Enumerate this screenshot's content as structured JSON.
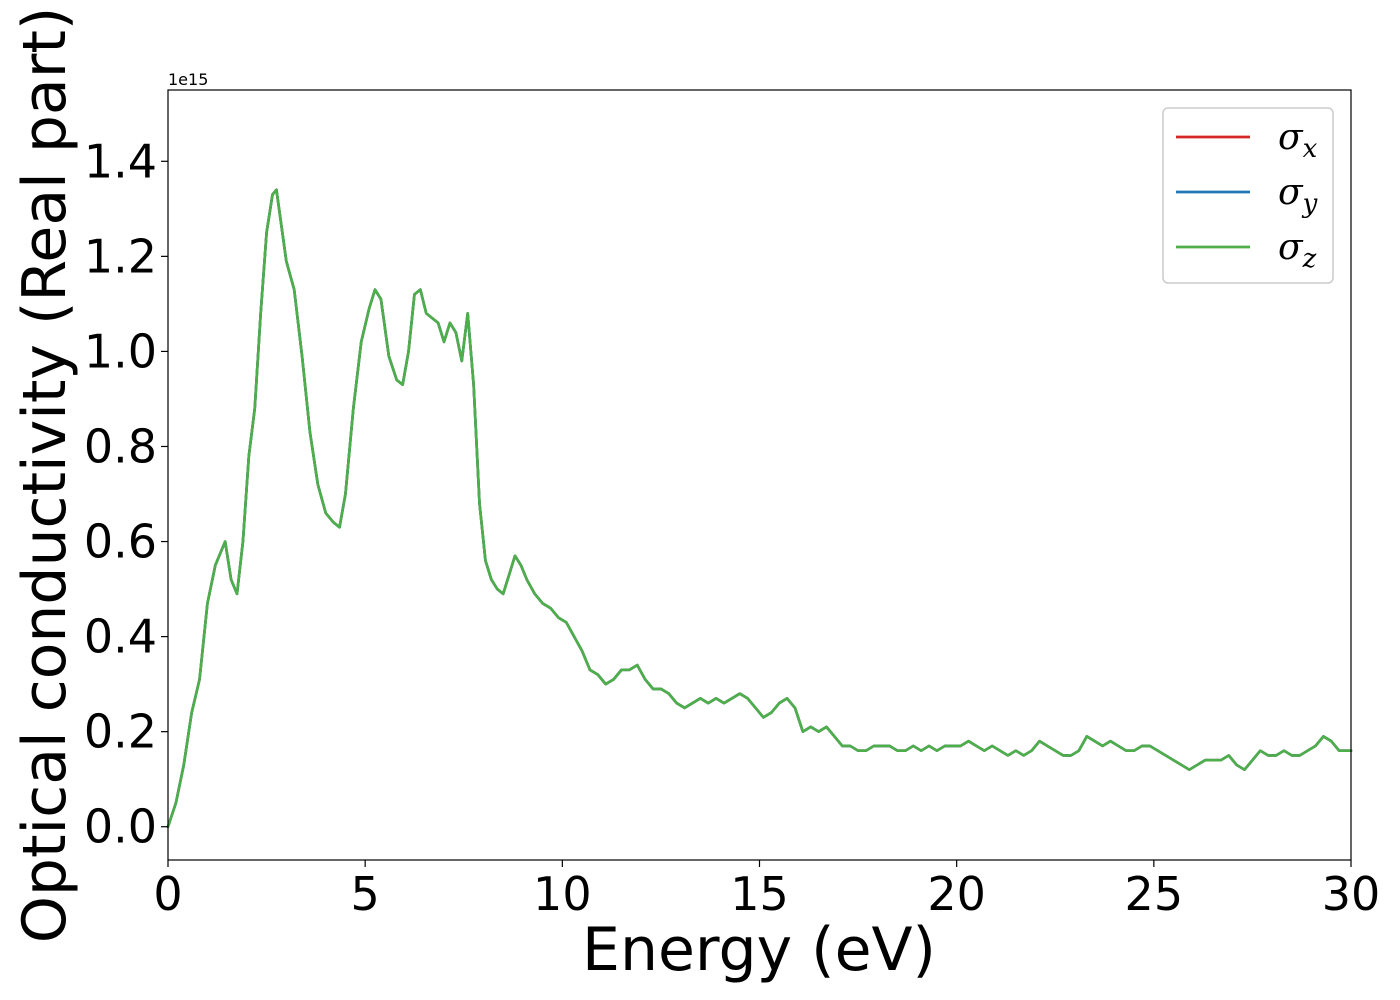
{
  "chart_data": {
    "type": "line",
    "xlabel": "Energy (eV)",
    "ylabel": "Optical conductivity (Real part)",
    "y_offset_label": "1e15",
    "xlim": [
      0,
      30
    ],
    "ylim": [
      -0.07,
      1.55
    ],
    "x_ticks": [
      0,
      5,
      10,
      15,
      20,
      25,
      30
    ],
    "y_ticks": [
      0.0,
      0.2,
      0.4,
      0.6,
      0.8,
      1.0,
      1.2,
      1.4
    ],
    "x_tick_labels": [
      "0",
      "5",
      "10",
      "15",
      "20",
      "25",
      "30"
    ],
    "y_tick_labels": [
      "0.0",
      "0.2",
      "0.4",
      "0.6",
      "0.8",
      "1.0",
      "1.2",
      "1.4"
    ],
    "grid": false,
    "legend_position": "top-right",
    "x": [
      0,
      0.2,
      0.4,
      0.6,
      0.8,
      1.0,
      1.2,
      1.45,
      1.6,
      1.75,
      1.9,
      2.05,
      2.2,
      2.35,
      2.5,
      2.65,
      2.75,
      2.85,
      3.0,
      3.2,
      3.4,
      3.6,
      3.8,
      4.0,
      4.2,
      4.35,
      4.5,
      4.7,
      4.9,
      5.1,
      5.25,
      5.4,
      5.6,
      5.8,
      5.95,
      6.1,
      6.25,
      6.4,
      6.55,
      6.7,
      6.85,
      7.0,
      7.15,
      7.3,
      7.45,
      7.6,
      7.75,
      7.9,
      8.05,
      8.2,
      8.35,
      8.5,
      8.65,
      8.8,
      8.95,
      9.1,
      9.3,
      9.5,
      9.7,
      9.9,
      10.1,
      10.3,
      10.5,
      10.7,
      10.9,
      11.1,
      11.3,
      11.5,
      11.7,
      11.9,
      12.1,
      12.3,
      12.5,
      12.7,
      12.9,
      13.1,
      13.3,
      13.5,
      13.7,
      13.9,
      14.1,
      14.3,
      14.5,
      14.7,
      14.9,
      15.1,
      15.3,
      15.5,
      15.7,
      15.9,
      16.1,
      16.3,
      16.5,
      16.7,
      16.9,
      17.1,
      17.3,
      17.5,
      17.7,
      17.9,
      18.1,
      18.3,
      18.5,
      18.7,
      18.9,
      19.1,
      19.3,
      19.5,
      19.7,
      19.9,
      20.1,
      20.3,
      20.5,
      20.7,
      20.9,
      21.1,
      21.3,
      21.5,
      21.7,
      21.9,
      22.1,
      22.3,
      22.5,
      22.7,
      22.9,
      23.1,
      23.3,
      23.5,
      23.7,
      23.9,
      24.1,
      24.3,
      24.5,
      24.7,
      24.9,
      25.1,
      25.3,
      25.5,
      25.7,
      25.9,
      26.1,
      26.3,
      26.5,
      26.7,
      26.9,
      27.1,
      27.3,
      27.5,
      27.7,
      27.9,
      28.1,
      28.3,
      28.5,
      28.7,
      28.9,
      29.1,
      29.3,
      29.5,
      29.7,
      30.0
    ],
    "series": [
      {
        "name": "σx",
        "color": "#d62728",
        "values": [
          0.0,
          0.05,
          0.13,
          0.24,
          0.31,
          0.47,
          0.55,
          0.6,
          0.52,
          0.49,
          0.6,
          0.78,
          0.88,
          1.08,
          1.25,
          1.33,
          1.34,
          1.28,
          1.19,
          1.13,
          0.99,
          0.83,
          0.72,
          0.66,
          0.64,
          0.63,
          0.7,
          0.88,
          1.02,
          1.09,
          1.13,
          1.11,
          0.99,
          0.94,
          0.93,
          1.0,
          1.12,
          1.13,
          1.08,
          1.07,
          1.06,
          1.02,
          1.06,
          1.04,
          0.98,
          1.08,
          0.93,
          0.68,
          0.56,
          0.52,
          0.5,
          0.49,
          0.53,
          0.57,
          0.55,
          0.52,
          0.49,
          0.47,
          0.46,
          0.44,
          0.43,
          0.4,
          0.37,
          0.33,
          0.32,
          0.3,
          0.31,
          0.33,
          0.33,
          0.34,
          0.31,
          0.29,
          0.29,
          0.28,
          0.26,
          0.25,
          0.26,
          0.27,
          0.26,
          0.27,
          0.26,
          0.27,
          0.28,
          0.27,
          0.25,
          0.23,
          0.24,
          0.26,
          0.27,
          0.25,
          0.2,
          0.21,
          0.2,
          0.21,
          0.19,
          0.17,
          0.17,
          0.16,
          0.16,
          0.17,
          0.17,
          0.17,
          0.16,
          0.16,
          0.17,
          0.16,
          0.17,
          0.16,
          0.17,
          0.17,
          0.17,
          0.18,
          0.17,
          0.16,
          0.17,
          0.16,
          0.15,
          0.16,
          0.15,
          0.16,
          0.18,
          0.17,
          0.16,
          0.15,
          0.15,
          0.16,
          0.19,
          0.18,
          0.17,
          0.18,
          0.17,
          0.16,
          0.16,
          0.17,
          0.17,
          0.16,
          0.15,
          0.14,
          0.13,
          0.12,
          0.13,
          0.14,
          0.14,
          0.14,
          0.15,
          0.13,
          0.12,
          0.14,
          0.16,
          0.15,
          0.15,
          0.16,
          0.15,
          0.15,
          0.16,
          0.17,
          0.19,
          0.18,
          0.16,
          0.16
        ]
      },
      {
        "name": "σy",
        "color": "#1f77b4",
        "values": [
          0.0,
          0.05,
          0.13,
          0.24,
          0.31,
          0.47,
          0.55,
          0.6,
          0.52,
          0.49,
          0.6,
          0.78,
          0.88,
          1.08,
          1.25,
          1.33,
          1.34,
          1.28,
          1.19,
          1.13,
          0.99,
          0.83,
          0.72,
          0.66,
          0.64,
          0.63,
          0.7,
          0.88,
          1.02,
          1.09,
          1.13,
          1.11,
          0.99,
          0.94,
          0.93,
          1.0,
          1.12,
          1.13,
          1.08,
          1.07,
          1.06,
          1.02,
          1.06,
          1.04,
          0.98,
          1.08,
          0.93,
          0.68,
          0.56,
          0.52,
          0.5,
          0.49,
          0.53,
          0.57,
          0.55,
          0.52,
          0.49,
          0.47,
          0.46,
          0.44,
          0.43,
          0.4,
          0.37,
          0.33,
          0.32,
          0.3,
          0.31,
          0.33,
          0.33,
          0.34,
          0.31,
          0.29,
          0.29,
          0.28,
          0.26,
          0.25,
          0.26,
          0.27,
          0.26,
          0.27,
          0.26,
          0.27,
          0.28,
          0.27,
          0.25,
          0.23,
          0.24,
          0.26,
          0.27,
          0.25,
          0.2,
          0.21,
          0.2,
          0.21,
          0.19,
          0.17,
          0.17,
          0.16,
          0.16,
          0.17,
          0.17,
          0.17,
          0.16,
          0.16,
          0.17,
          0.16,
          0.17,
          0.16,
          0.17,
          0.17,
          0.17,
          0.18,
          0.17,
          0.16,
          0.17,
          0.16,
          0.15,
          0.16,
          0.15,
          0.16,
          0.18,
          0.17,
          0.16,
          0.15,
          0.15,
          0.16,
          0.19,
          0.18,
          0.17,
          0.18,
          0.17,
          0.16,
          0.16,
          0.17,
          0.17,
          0.16,
          0.15,
          0.14,
          0.13,
          0.12,
          0.13,
          0.14,
          0.14,
          0.14,
          0.15,
          0.13,
          0.12,
          0.14,
          0.16,
          0.15,
          0.15,
          0.16,
          0.15,
          0.15,
          0.16,
          0.17,
          0.19,
          0.18,
          0.16,
          0.16
        ]
      },
      {
        "name": "σz",
        "color": "#4daf4a",
        "values": [
          0.0,
          0.05,
          0.13,
          0.24,
          0.31,
          0.47,
          0.55,
          0.6,
          0.52,
          0.49,
          0.6,
          0.78,
          0.88,
          1.08,
          1.25,
          1.33,
          1.34,
          1.28,
          1.19,
          1.13,
          0.99,
          0.83,
          0.72,
          0.66,
          0.64,
          0.63,
          0.7,
          0.88,
          1.02,
          1.09,
          1.13,
          1.11,
          0.99,
          0.94,
          0.93,
          1.0,
          1.12,
          1.13,
          1.08,
          1.07,
          1.06,
          1.02,
          1.06,
          1.04,
          0.98,
          1.08,
          0.93,
          0.68,
          0.56,
          0.52,
          0.5,
          0.49,
          0.53,
          0.57,
          0.55,
          0.52,
          0.49,
          0.47,
          0.46,
          0.44,
          0.43,
          0.4,
          0.37,
          0.33,
          0.32,
          0.3,
          0.31,
          0.33,
          0.33,
          0.34,
          0.31,
          0.29,
          0.29,
          0.28,
          0.26,
          0.25,
          0.26,
          0.27,
          0.26,
          0.27,
          0.26,
          0.27,
          0.28,
          0.27,
          0.25,
          0.23,
          0.24,
          0.26,
          0.27,
          0.25,
          0.2,
          0.21,
          0.2,
          0.21,
          0.19,
          0.17,
          0.17,
          0.16,
          0.16,
          0.17,
          0.17,
          0.17,
          0.16,
          0.16,
          0.17,
          0.16,
          0.17,
          0.16,
          0.17,
          0.17,
          0.17,
          0.18,
          0.17,
          0.16,
          0.17,
          0.16,
          0.15,
          0.16,
          0.15,
          0.16,
          0.18,
          0.17,
          0.16,
          0.15,
          0.15,
          0.16,
          0.19,
          0.18,
          0.17,
          0.18,
          0.17,
          0.16,
          0.16,
          0.17,
          0.17,
          0.16,
          0.15,
          0.14,
          0.13,
          0.12,
          0.13,
          0.14,
          0.14,
          0.14,
          0.15,
          0.13,
          0.12,
          0.14,
          0.16,
          0.15,
          0.15,
          0.16,
          0.15,
          0.15,
          0.16,
          0.17,
          0.19,
          0.18,
          0.16,
          0.16
        ]
      }
    ],
    "legend": [
      {
        "symbol": "σ",
        "sub": "x",
        "color": "#d62728"
      },
      {
        "symbol": "σ",
        "sub": "y",
        "color": "#1f77b4"
      },
      {
        "symbol": "σ",
        "sub": "z",
        "color": "#4daf4a"
      }
    ]
  }
}
